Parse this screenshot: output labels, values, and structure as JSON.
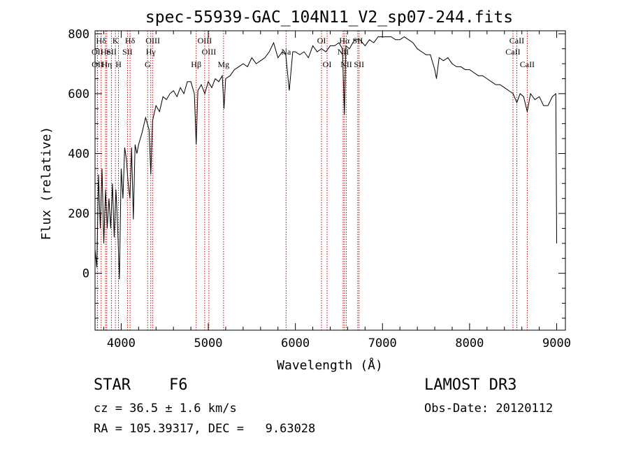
{
  "chart_data": {
    "type": "line",
    "title": "spec-55939-GAC_104N11_V2_sp07-244.fits",
    "xlabel": "Wavelength (Å)",
    "ylabel": "Flux (relative)",
    "xlim": [
      3700,
      9100
    ],
    "ylim": [
      -190,
      810
    ],
    "x_ticks": [
      4000,
      5000,
      6000,
      7000,
      8000,
      9000
    ],
    "y_ticks": [
      0,
      200,
      400,
      600,
      800
    ],
    "series": [
      {
        "name": "spectrum",
        "x": [
          3700,
          3720,
          3740,
          3760,
          3780,
          3800,
          3820,
          3840,
          3860,
          3880,
          3900,
          3920,
          3940,
          3960,
          3980,
          4000,
          4020,
          4040,
          4060,
          4080,
          4100,
          4120,
          4140,
          4160,
          4180,
          4200,
          4240,
          4280,
          4320,
          4340,
          4360,
          4400,
          4440,
          4480,
          4520,
          4560,
          4600,
          4640,
          4680,
          4720,
          4760,
          4800,
          4840,
          4861,
          4880,
          4920,
          4960,
          5000,
          5040,
          5080,
          5120,
          5160,
          5180,
          5200,
          5250,
          5300,
          5350,
          5400,
          5450,
          5500,
          5550,
          5600,
          5650,
          5700,
          5750,
          5800,
          5850,
          5890,
          5930,
          5970,
          6000,
          6050,
          6100,
          6150,
          6200,
          6250,
          6300,
          6350,
          6400,
          6450,
          6500,
          6540,
          6563,
          6580,
          6620,
          6680,
          6740,
          6800,
          6850,
          6900,
          6950,
          7000,
          7050,
          7100,
          7150,
          7200,
          7250,
          7300,
          7350,
          7400,
          7450,
          7500,
          7550,
          7600,
          7620,
          7650,
          7700,
          7750,
          7800,
          7850,
          7900,
          7950,
          8000,
          8050,
          8100,
          8150,
          8200,
          8250,
          8300,
          8350,
          8400,
          8450,
          8500,
          8542,
          8580,
          8620,
          8662,
          8700,
          8750,
          8800,
          8850,
          8900,
          8950,
          8990,
          9000
        ],
        "y": [
          80,
          20,
          330,
          150,
          350,
          100,
          280,
          150,
          250,
          150,
          300,
          120,
          280,
          150,
          -20,
          350,
          250,
          420,
          380,
          300,
          250,
          420,
          180,
          430,
          400,
          430,
          470,
          520,
          480,
          330,
          510,
          560,
          540,
          590,
          580,
          600,
          610,
          590,
          620,
          600,
          640,
          640,
          600,
          430,
          610,
          630,
          600,
          640,
          620,
          650,
          640,
          660,
          550,
          650,
          660,
          680,
          690,
          700,
          690,
          720,
          700,
          710,
          720,
          740,
          770,
          720,
          740,
          730,
          610,
          740,
          740,
          730,
          740,
          720,
          760,
          740,
          750,
          740,
          760,
          760,
          770,
          750,
          530,
          760,
          750,
          780,
          780,
          760,
          780,
          770,
          790,
          790,
          790,
          790,
          780,
          780,
          790,
          780,
          770,
          750,
          740,
          730,
          730,
          680,
          650,
          720,
          710,
          720,
          700,
          690,
          690,
          680,
          680,
          670,
          660,
          660,
          650,
          640,
          630,
          630,
          620,
          610,
          600,
          570,
          600,
          590,
          540,
          600,
          580,
          590,
          560,
          560,
          590,
          600,
          100
        ]
      }
    ],
    "spectral_lines": [
      {
        "name": "Hδ",
        "wavelength": 3770,
        "row": 1
      },
      {
        "name": "OII",
        "wavelength": 3727,
        "row": 2
      },
      {
        "name": "OII",
        "wavelength": 3729,
        "row": 3
      },
      {
        "name": "He",
        "wavelength": 3820,
        "row": 2
      },
      {
        "name": "Hη",
        "wavelength": 3835,
        "row": 3
      },
      {
        "name": "K",
        "wavelength": 3934,
        "row": 1
      },
      {
        "name": "SII",
        "wavelength": 3889,
        "row": 2
      },
      {
        "name": "H",
        "wavelength": 3969,
        "row": 3
      },
      {
        "name": "Hδ",
        "wavelength": 4102,
        "row": 1
      },
      {
        "name": "SII",
        "wavelength": 4072,
        "row": 2
      },
      {
        "name": "OIII",
        "wavelength": 4363,
        "row": 1
      },
      {
        "name": "Hγ",
        "wavelength": 4340,
        "row": 2
      },
      {
        "name": "G",
        "wavelength": 4304,
        "row": 3
      },
      {
        "name": "Hβ",
        "wavelength": 4861,
        "row": 3
      },
      {
        "name": "OIII",
        "wavelength": 4959,
        "row": 1
      },
      {
        "name": "OIII",
        "wavelength": 5007,
        "row": 2
      },
      {
        "name": "Mg",
        "wavelength": 5175,
        "row": 3
      },
      {
        "name": "Na",
        "wavelength": 5893,
        "row": 2
      },
      {
        "name": "OI",
        "wavelength": 6300,
        "row": 1
      },
      {
        "name": "OI",
        "wavelength": 6364,
        "row": 3
      },
      {
        "name": "Hα",
        "wavelength": 6563,
        "row": 1
      },
      {
        "name": "SII",
        "wavelength": 6716,
        "row": 1
      },
      {
        "name": "NII",
        "wavelength": 6548,
        "row": 2
      },
      {
        "name": "NII",
        "wavelength": 6584,
        "row": 3
      },
      {
        "name": "SII",
        "wavelength": 6731,
        "row": 3
      },
      {
        "name": "CaII",
        "wavelength": 8542,
        "row": 1
      },
      {
        "name": "CaII",
        "wavelength": 8498,
        "row": 2
      },
      {
        "name": "CaII",
        "wavelength": 8662,
        "row": 3
      }
    ]
  },
  "info": {
    "object_class": "STAR",
    "subclass": "F6",
    "survey": "LAMOST DR3",
    "cz": "cz = 36.5 ± 1.6 km/s",
    "obs_date": "Obs-Date: 20120112",
    "coords": "RA = 105.39317, DEC =   9.63028"
  },
  "colors": {
    "line": "#000000",
    "marker": "#cc0000"
  }
}
